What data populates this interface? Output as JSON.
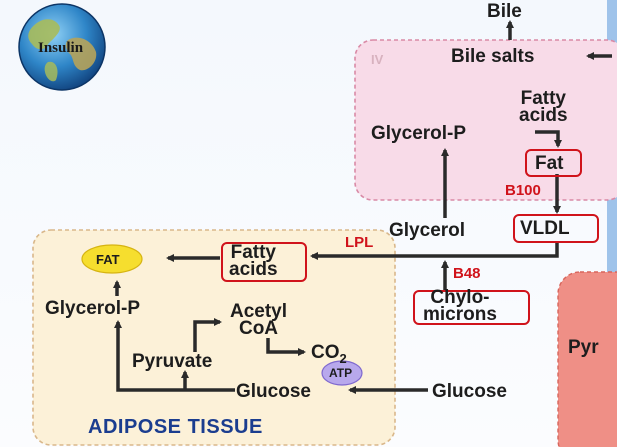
{
  "badge": {
    "label": "Insulin"
  },
  "liver": {
    "roman_numeral": "IV",
    "bile": "Bile",
    "bile_salts": "Bile salts",
    "fatty_acids": [
      "Fatty",
      "acids"
    ],
    "glycerol_p": "Glycerol-P",
    "fat": "Fat",
    "vldl": "VLDL",
    "glycerol": "Glycerol"
  },
  "adipose": {
    "fat": "FAT",
    "fatty_acids": [
      "Fatty",
      "acids"
    ],
    "glycerol_p": "Glycerol-P",
    "acetyl_coa": [
      "Acetyl",
      "CoA"
    ],
    "co2": "CO",
    "co2_sub": "2",
    "pyruvate": "Pyruvate",
    "atp": "ATP",
    "glucose": "Glucose",
    "title": "ADIPOSE TISSUE"
  },
  "blood": {
    "chylomicrons": [
      "Chylo-",
      "microns"
    ],
    "glucose": "Glucose"
  },
  "annotations": {
    "b100": "B100",
    "lpl": "LPL",
    "b48": "B48"
  },
  "muscle": {
    "partial_label": "Pyr"
  },
  "colors": {
    "highlight_red": "#d0131b",
    "arrow": "#2a2a2a",
    "liver_fill": "#f8dbe8",
    "adipose_fill": "#fcf1d8",
    "muscle_fill": "#ef8f86",
    "fat_fill": "#f6de2e",
    "atp_fill": "#b8a8ec",
    "title_blue": "#1b3d8f"
  }
}
